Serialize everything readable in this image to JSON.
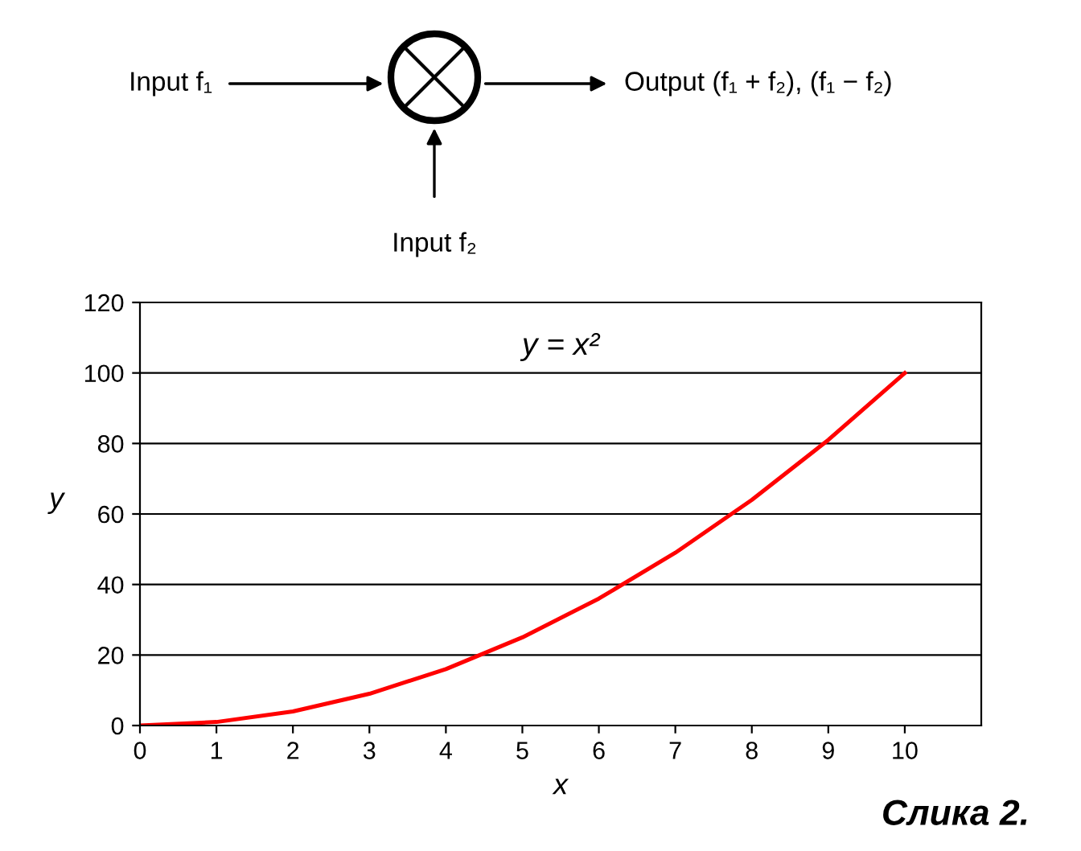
{
  "chart_data": {
    "type": "line",
    "title": "y = x²",
    "xlabel": "x",
    "ylabel": "y",
    "x": [
      0,
      1,
      2,
      3,
      4,
      5,
      6,
      7,
      8,
      9,
      10
    ],
    "series": [
      {
        "color": "#ff0000",
        "values": [
          0,
          1,
          4,
          9,
          16,
          25,
          36,
          49,
          64,
          81,
          100
        ]
      }
    ],
    "xlim": [
      0,
      11
    ],
    "xticks": [
      0,
      1,
      2,
      3,
      4,
      5,
      6,
      7,
      8,
      9,
      10
    ],
    "ylim": [
      0,
      120
    ],
    "yticks": [
      0,
      20,
      40,
      60,
      80,
      100,
      120
    ],
    "grid": "y",
    "legend": false,
    "marker": "none",
    "line_style": "solid",
    "annotations": [
      "Input f₁",
      "Output (f₁ + f₂), (f₁ − f₂)",
      "Input f₂",
      "Слика 2."
    ]
  }
}
